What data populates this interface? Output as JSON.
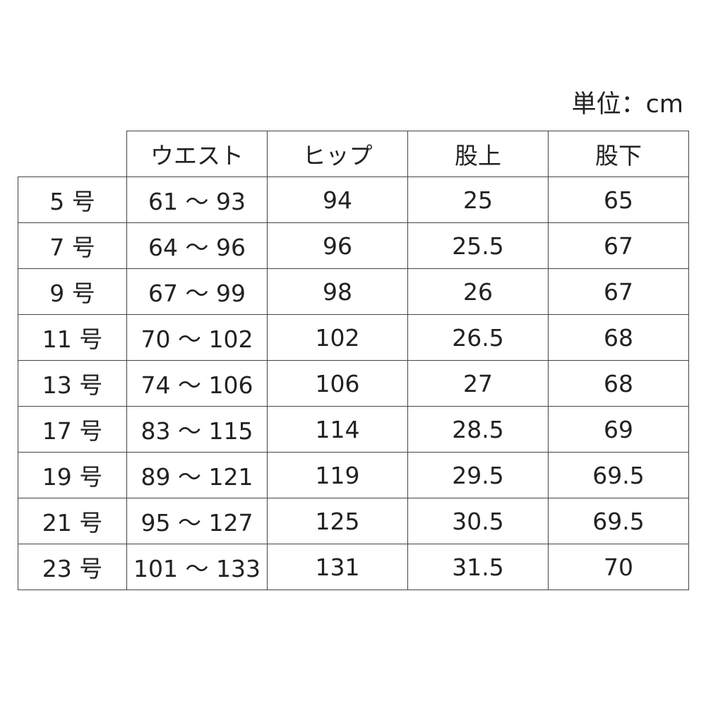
{
  "unit_label": "単位：cm",
  "table": {
    "headers": [
      "",
      "ウエスト",
      "ヒップ",
      "股上",
      "股下"
    ],
    "rows": [
      [
        "5 号",
        "61 〜 93",
        "94",
        "25",
        "65"
      ],
      [
        "7 号",
        "64 〜 96",
        "96",
        "25.5",
        "67"
      ],
      [
        "9 号",
        "67 〜 99",
        "98",
        "26",
        "67"
      ],
      [
        "11 号",
        "70 〜 102",
        "102",
        "26.5",
        "68"
      ],
      [
        "13 号",
        "74 〜 106",
        "106",
        "27",
        "68"
      ],
      [
        "17 号",
        "83 〜 115",
        "114",
        "28.5",
        "69"
      ],
      [
        "19 号",
        "89 〜 121",
        "119",
        "29.5",
        "69.5"
      ],
      [
        "21 号",
        "95 〜 127",
        "125",
        "30.5",
        "69.5"
      ],
      [
        "23 号",
        "101 〜 133",
        "131",
        "31.5",
        "70"
      ]
    ]
  }
}
